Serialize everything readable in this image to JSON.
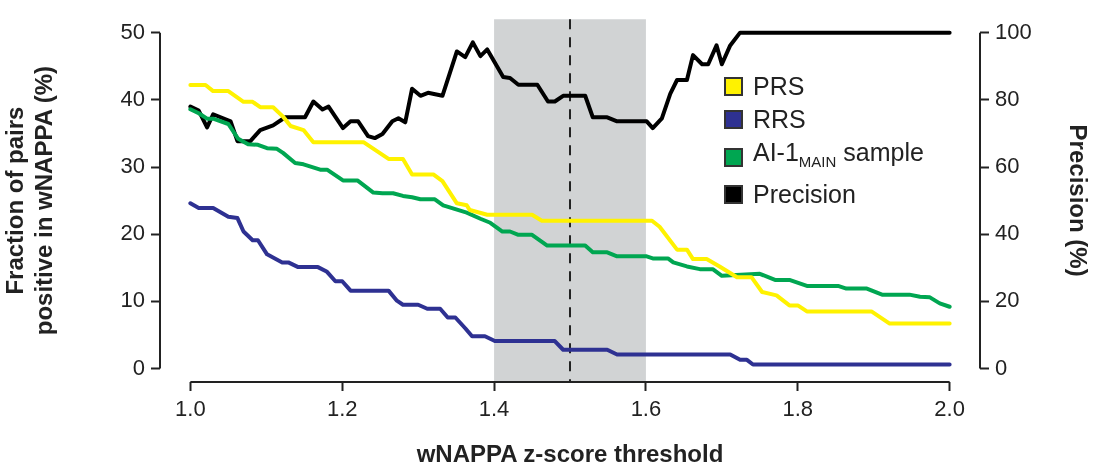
{
  "chart_data": {
    "type": "line",
    "xlabel": "wNAPPA z-score threshold",
    "ylabel": "Fraction of pairs positive in wNAPPA (%)",
    "y2label": "Precision (%)",
    "xlim": [
      0.96,
      2.04
    ],
    "xticks": [
      {
        "value": 1.0,
        "label": "1.0"
      },
      {
        "value": 1.2,
        "label": "1.2"
      },
      {
        "value": 1.4,
        "label": "1.4"
      },
      {
        "value": 1.6,
        "label": "1.6"
      },
      {
        "value": 1.8,
        "label": "1.8"
      },
      {
        "value": 2.0,
        "label": "2.0"
      }
    ],
    "ylim": [
      -2,
      52
    ],
    "yticks": [
      0,
      10,
      20,
      30,
      40,
      50
    ],
    "y2lim": [
      -4,
      104
    ],
    "y2ticks": [
      0,
      20,
      40,
      60,
      80,
      100
    ],
    "grid": false,
    "legend": "right",
    "marker": "none",
    "line_style": "solid",
    "bands": [
      {
        "axis": "x",
        "from": 1.4,
        "to": 1.6,
        "color": "#d1d3d4"
      }
    ],
    "ref_lines": [
      {
        "axis": "x",
        "value": 1.5,
        "color": "#222222",
        "line_style": "dashed"
      }
    ],
    "series": [
      {
        "name": "PRS",
        "color": "#fff200",
        "x": [
          1.0,
          1.02,
          1.03,
          1.05,
          1.07,
          1.082,
          1.092,
          1.109,
          1.122,
          1.132,
          1.149,
          1.162,
          1.228,
          1.261,
          1.28,
          1.292,
          1.32,
          1.332,
          1.351,
          1.364,
          1.368,
          1.391,
          1.45,
          1.463,
          1.608,
          1.618,
          1.641,
          1.654,
          1.662,
          1.68,
          1.697,
          1.72,
          1.739,
          1.753,
          1.772,
          1.789,
          1.8,
          1.812,
          1.897,
          1.921,
          2.0
        ],
        "values": [
          42.2,
          42.2,
          41.3,
          41.3,
          39.7,
          39.7,
          38.9,
          38.9,
          37.5,
          36.1,
          35.5,
          33.7,
          33.7,
          31.2,
          31.2,
          28.9,
          28.9,
          27.9,
          24.6,
          24.3,
          23.6,
          22.9,
          22.9,
          22.0,
          22.0,
          21.1,
          17.7,
          17.7,
          16.3,
          16.3,
          15.2,
          13.6,
          13.6,
          11.4,
          10.9,
          9.4,
          9.4,
          8.5,
          8.5,
          6.7,
          6.7
        ]
      },
      {
        "name": "RRS",
        "color": "#2e3192",
        "x": [
          1.0,
          1.011,
          1.03,
          1.05,
          1.062,
          1.07,
          1.082,
          1.089,
          1.101,
          1.121,
          1.129,
          1.142,
          1.168,
          1.18,
          1.191,
          1.2,
          1.211,
          1.261,
          1.272,
          1.28,
          1.3,
          1.312,
          1.329,
          1.339,
          1.349,
          1.362,
          1.371,
          1.388,
          1.401,
          1.48,
          1.491,
          1.549,
          1.562,
          1.711,
          1.724,
          1.733,
          1.741,
          2.0
        ],
        "values": [
          24.6,
          23.9,
          23.9,
          22.6,
          22.4,
          20.4,
          19.1,
          19.1,
          17.0,
          15.8,
          15.8,
          15.1,
          15.1,
          14.4,
          13.0,
          13.0,
          11.6,
          11.6,
          10.1,
          9.5,
          9.5,
          8.9,
          8.9,
          7.6,
          7.6,
          6.0,
          4.8,
          4.8,
          4.1,
          4.1,
          2.8,
          2.8,
          2.1,
          2.1,
          1.3,
          1.3,
          0.6,
          0.6
        ]
      },
      {
        "name": "AI-1$_{MAIN}$ sample",
        "color": "#00a651",
        "x": [
          1.0,
          1.011,
          1.022,
          1.03,
          1.05,
          1.063,
          1.076,
          1.089,
          1.101,
          1.114,
          1.122,
          1.138,
          1.149,
          1.171,
          1.18,
          1.201,
          1.22,
          1.241,
          1.253,
          1.267,
          1.28,
          1.292,
          1.303,
          1.322,
          1.333,
          1.364,
          1.382,
          1.395,
          1.411,
          1.421,
          1.432,
          1.45,
          1.47,
          1.52,
          1.53,
          1.549,
          1.562,
          1.601,
          1.609,
          1.629,
          1.636,
          1.654,
          1.671,
          1.688,
          1.7,
          1.75,
          1.77,
          1.789,
          1.812,
          1.853,
          1.864,
          1.891,
          1.911,
          1.947,
          1.961,
          1.974,
          1.987,
          2.0
        ],
        "values": [
          38.6,
          38.0,
          37.2,
          37.2,
          36.4,
          34.2,
          33.4,
          33.3,
          32.8,
          32.7,
          32.1,
          30.6,
          30.4,
          29.6,
          29.6,
          28.0,
          28.0,
          26.2,
          26.1,
          26.1,
          25.7,
          25.5,
          25.2,
          25.2,
          24.3,
          23.2,
          22.3,
          21.7,
          20.4,
          20.4,
          19.9,
          19.9,
          18.3,
          18.3,
          17.3,
          17.3,
          16.7,
          16.7,
          16.4,
          16.4,
          15.8,
          15.2,
          14.8,
          14.8,
          13.8,
          14.1,
          13.2,
          13.2,
          12.3,
          12.3,
          11.9,
          11.9,
          11.0,
          11.0,
          10.7,
          10.6,
          9.7,
          9.2
        ]
      },
      {
        "name": "Precision",
        "color": "#000000",
        "axis": "y2",
        "x": [
          1.0,
          1.011,
          1.022,
          1.03,
          1.053,
          1.062,
          1.079,
          1.092,
          1.109,
          1.125,
          1.151,
          1.162,
          1.174,
          1.182,
          1.201,
          1.211,
          1.221,
          1.234,
          1.243,
          1.253,
          1.266,
          1.274,
          1.283,
          1.292,
          1.303,
          1.313,
          1.332,
          1.351,
          1.362,
          1.372,
          1.382,
          1.391,
          1.412,
          1.421,
          1.432,
          1.457,
          1.471,
          1.48,
          1.491,
          1.52,
          1.53,
          1.549,
          1.562,
          1.601,
          1.609,
          1.621,
          1.632,
          1.641,
          1.654,
          1.662,
          1.674,
          1.682,
          1.693,
          1.7,
          1.711,
          1.724,
          2.0
        ],
        "values": [
          78.0,
          76.8,
          71.8,
          75.7,
          73.6,
          67.7,
          67.7,
          71.0,
          72.4,
          74.8,
          74.8,
          79.5,
          77.1,
          78.0,
          71.6,
          73.6,
          73.6,
          69.2,
          68.6,
          69.8,
          73.6,
          74.5,
          73.3,
          83.3,
          81.2,
          82.1,
          81.2,
          94.4,
          92.7,
          97.1,
          93.0,
          95.0,
          86.8,
          86.5,
          84.5,
          84.5,
          79.5,
          79.5,
          81.2,
          81.2,
          74.8,
          74.8,
          73.6,
          73.6,
          71.6,
          74.5,
          81.8,
          85.9,
          85.9,
          93.3,
          90.6,
          90.6,
          96.2,
          90.6,
          96.2,
          100,
          100
        ]
      }
    ]
  }
}
